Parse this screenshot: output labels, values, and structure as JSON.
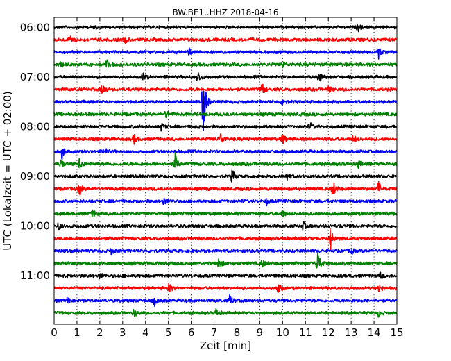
{
  "chart_data": {
    "type": "line",
    "title": "BW.BE1..HHZ 2018-04-16",
    "xlabel": "Zeit  [min]",
    "ylabel": "UTC (Lokalzeit = UTC + 02:00)",
    "xlim": [
      0,
      15
    ],
    "x_ticks": [
      0,
      1,
      2,
      3,
      4,
      5,
      6,
      7,
      8,
      9,
      10,
      11,
      12,
      13,
      14,
      15
    ],
    "y_tick_labels": [
      "06:00",
      "07:00",
      "08:00",
      "09:00",
      "10:00",
      "11:00"
    ],
    "grid": "x-dotted",
    "row_minutes": 15,
    "trace_color_cycle": [
      "#000000",
      "#ff0000",
      "#0000ff",
      "#008000"
    ],
    "traces": [
      {
        "start": "06:00",
        "events": [
          [
            13.3,
            0.3
          ]
        ]
      },
      {
        "start": "06:15",
        "events": [
          [
            0.7,
            0.35
          ],
          [
            3.1,
            0.25
          ]
        ]
      },
      {
        "start": "06:30",
        "events": [
          [
            5.9,
            0.3
          ],
          [
            14.2,
            0.45
          ]
        ]
      },
      {
        "start": "06:45",
        "events": [
          [
            0.2,
            0.3
          ],
          [
            2.3,
            0.35
          ],
          [
            10.0,
            0.25
          ]
        ]
      },
      {
        "start": "07:00",
        "events": [
          [
            3.9,
            0.3
          ],
          [
            6.3,
            0.4
          ],
          [
            11.6,
            0.5
          ]
        ]
      },
      {
        "start": "07:15",
        "events": [
          [
            2.1,
            0.5
          ],
          [
            9.1,
            0.55
          ],
          [
            12.0,
            0.3
          ]
        ]
      },
      {
        "start": "07:30",
        "events": [
          [
            6.5,
            1.8
          ],
          [
            6.55,
            1.2
          ],
          [
            10.0,
            0.3
          ]
        ]
      },
      {
        "start": "07:45",
        "events": [
          [
            4.9,
            0.25
          ]
        ]
      },
      {
        "start": "08:00",
        "events": [
          [
            4.7,
            0.3
          ],
          [
            11.2,
            0.3
          ]
        ]
      },
      {
        "start": "08:15",
        "events": [
          [
            3.5,
            0.35
          ],
          [
            7.3,
            0.45
          ],
          [
            10.0,
            0.5
          ],
          [
            13.1,
            0.3
          ]
        ]
      },
      {
        "start": "08:30",
        "events": [
          [
            0.35,
            0.6
          ],
          [
            2.2,
            0.35
          ]
        ]
      },
      {
        "start": "08:45",
        "events": [
          [
            0.3,
            0.3
          ],
          [
            1.1,
            0.45
          ],
          [
            5.3,
            0.8
          ],
          [
            13.3,
            0.35
          ]
        ]
      },
      {
        "start": "09:00",
        "events": [
          [
            7.8,
            0.55
          ],
          [
            10.2,
            0.3
          ]
        ]
      },
      {
        "start": "09:15",
        "events": [
          [
            1.1,
            0.55
          ],
          [
            12.2,
            0.7
          ],
          [
            14.2,
            0.55
          ]
        ]
      },
      {
        "start": "09:30",
        "events": [
          [
            4.8,
            0.3
          ],
          [
            9.3,
            0.25
          ]
        ]
      },
      {
        "start": "09:45",
        "events": [
          [
            1.7,
            0.3
          ],
          [
            10.0,
            0.3
          ]
        ]
      },
      {
        "start": "10:00",
        "events": [
          [
            0.2,
            0.3
          ],
          [
            10.9,
            0.35
          ]
        ]
      },
      {
        "start": "10:15",
        "events": [
          [
            12.1,
            0.95
          ]
        ]
      },
      {
        "start": "10:30",
        "events": [
          [
            2.5,
            0.25
          ],
          [
            13.0,
            0.25
          ]
        ]
      },
      {
        "start": "10:45",
        "events": [
          [
            7.2,
            0.55
          ],
          [
            11.5,
            1.4
          ],
          [
            9.1,
            0.3
          ]
        ]
      },
      {
        "start": "11:00",
        "events": [
          [
            2.0,
            0.25
          ],
          [
            14.3,
            0.25
          ]
        ]
      },
      {
        "start": "11:15",
        "events": [
          [
            5.0,
            0.4
          ],
          [
            9.8,
            0.45
          ],
          [
            14.2,
            0.4
          ]
        ]
      },
      {
        "start": "11:30",
        "events": [
          [
            0.6,
            0.3
          ],
          [
            4.4,
            0.35
          ],
          [
            7.7,
            0.45
          ]
        ]
      },
      {
        "start": "11:45",
        "events": [
          [
            3.5,
            0.3
          ],
          [
            7.1,
            0.35
          ],
          [
            14.2,
            0.25
          ]
        ]
      }
    ]
  }
}
